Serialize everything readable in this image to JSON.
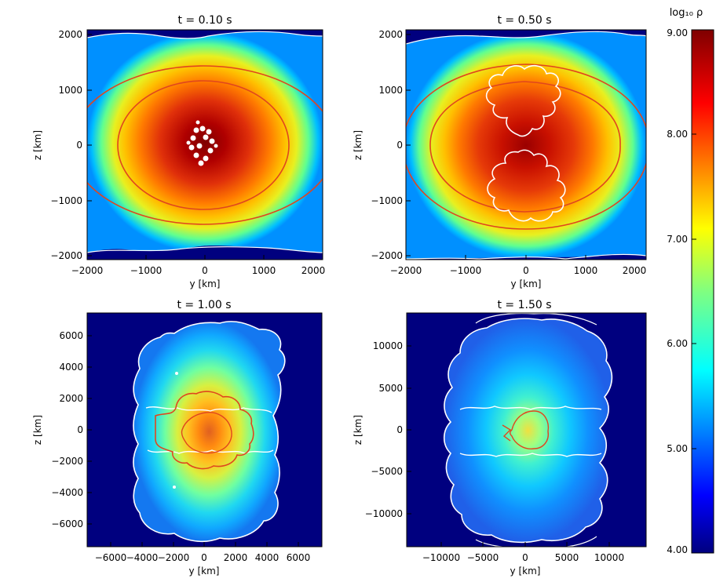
{
  "colors": {
    "background": "#00007f",
    "contour_red": "#e0461e",
    "contour_white": "#ffffff",
    "frame": "#000000"
  },
  "colorbar": {
    "label": "log₁₀ ρ",
    "min": 4.0,
    "max": 9.0,
    "ticks": [
      "9.00",
      "8.00",
      "7.00",
      "6.00",
      "5.00",
      "4.00"
    ],
    "tick_values": [
      9.0,
      8.0,
      7.0,
      6.0,
      5.0,
      4.0
    ],
    "colormap": "jet"
  },
  "chart_data": [
    {
      "type": "heatmap",
      "title": "t = 0.10 s",
      "xlabel": "y [km]",
      "ylabel": "z [km]",
      "xlim": [
        -2000,
        2000
      ],
      "ylim": [
        -2000,
        2000
      ],
      "xticks": [
        -2000,
        -1000,
        0,
        1000,
        2000
      ],
      "yticks": [
        -2000,
        -1000,
        0,
        1000,
        2000
      ],
      "xtick_labels": [
        "−2000",
        "−1000",
        "0",
        "1000",
        "2000"
      ],
      "ytick_labels": [
        "−2000",
        "−1000",
        "0",
        "1000",
        "2000"
      ],
      "core_log_rho": 9.0,
      "surface_log_rho": 4.0
    },
    {
      "type": "heatmap",
      "title": "t = 0.50 s",
      "xlabel": "y [km]",
      "ylabel": "z [km]",
      "xlim": [
        -2000,
        2000
      ],
      "ylim": [
        -2000,
        2000
      ],
      "xticks": [
        -2000,
        -1000,
        0,
        1000,
        2000
      ],
      "yticks": [
        -2000,
        -1000,
        0,
        1000,
        2000
      ],
      "xtick_labels": [
        "−2000",
        "−1000",
        "0",
        "1000",
        "2000"
      ],
      "ytick_labels": [
        "−2000",
        "−1000",
        "0",
        "1000",
        "2000"
      ],
      "core_log_rho": 8.9,
      "surface_log_rho": 4.0
    },
    {
      "type": "heatmap",
      "title": "t = 1.00 s",
      "xlabel": "y [km]",
      "ylabel": "z [km]",
      "xlim": [
        -7500,
        7500
      ],
      "ylim": [
        -7500,
        7500
      ],
      "xticks": [
        -6000,
        -4000,
        -2000,
        0,
        2000,
        4000,
        6000
      ],
      "yticks": [
        -6000,
        -4000,
        -2000,
        0,
        2000,
        4000,
        6000
      ],
      "xtick_labels": [
        "−6000",
        "−4000",
        "−2000",
        "0",
        "2000",
        "4000",
        "6000"
      ],
      "ytick_labels": [
        "−6000",
        "−4000",
        "−2000",
        "0",
        "2000",
        "4000",
        "6000"
      ],
      "core_log_rho": 8.0,
      "surface_log_rho": 4.0
    },
    {
      "type": "heatmap",
      "title": "t = 1.50 s",
      "xlabel": "y [km]",
      "ylabel": "z [km]",
      "xlim": [
        -14000,
        14000
      ],
      "ylim": [
        -14000,
        14000
      ],
      "xticks": [
        -10000,
        -5000,
        0,
        5000,
        10000
      ],
      "yticks": [
        -10000,
        -5000,
        0,
        5000,
        10000
      ],
      "xtick_labels": [
        "−10000",
        "−5000",
        "0",
        "5000",
        "10000"
      ],
      "ytick_labels": [
        "−10000",
        "−5000",
        "0",
        "5000",
        "10000"
      ],
      "core_log_rho": 7.0,
      "surface_log_rho": 4.0
    }
  ]
}
